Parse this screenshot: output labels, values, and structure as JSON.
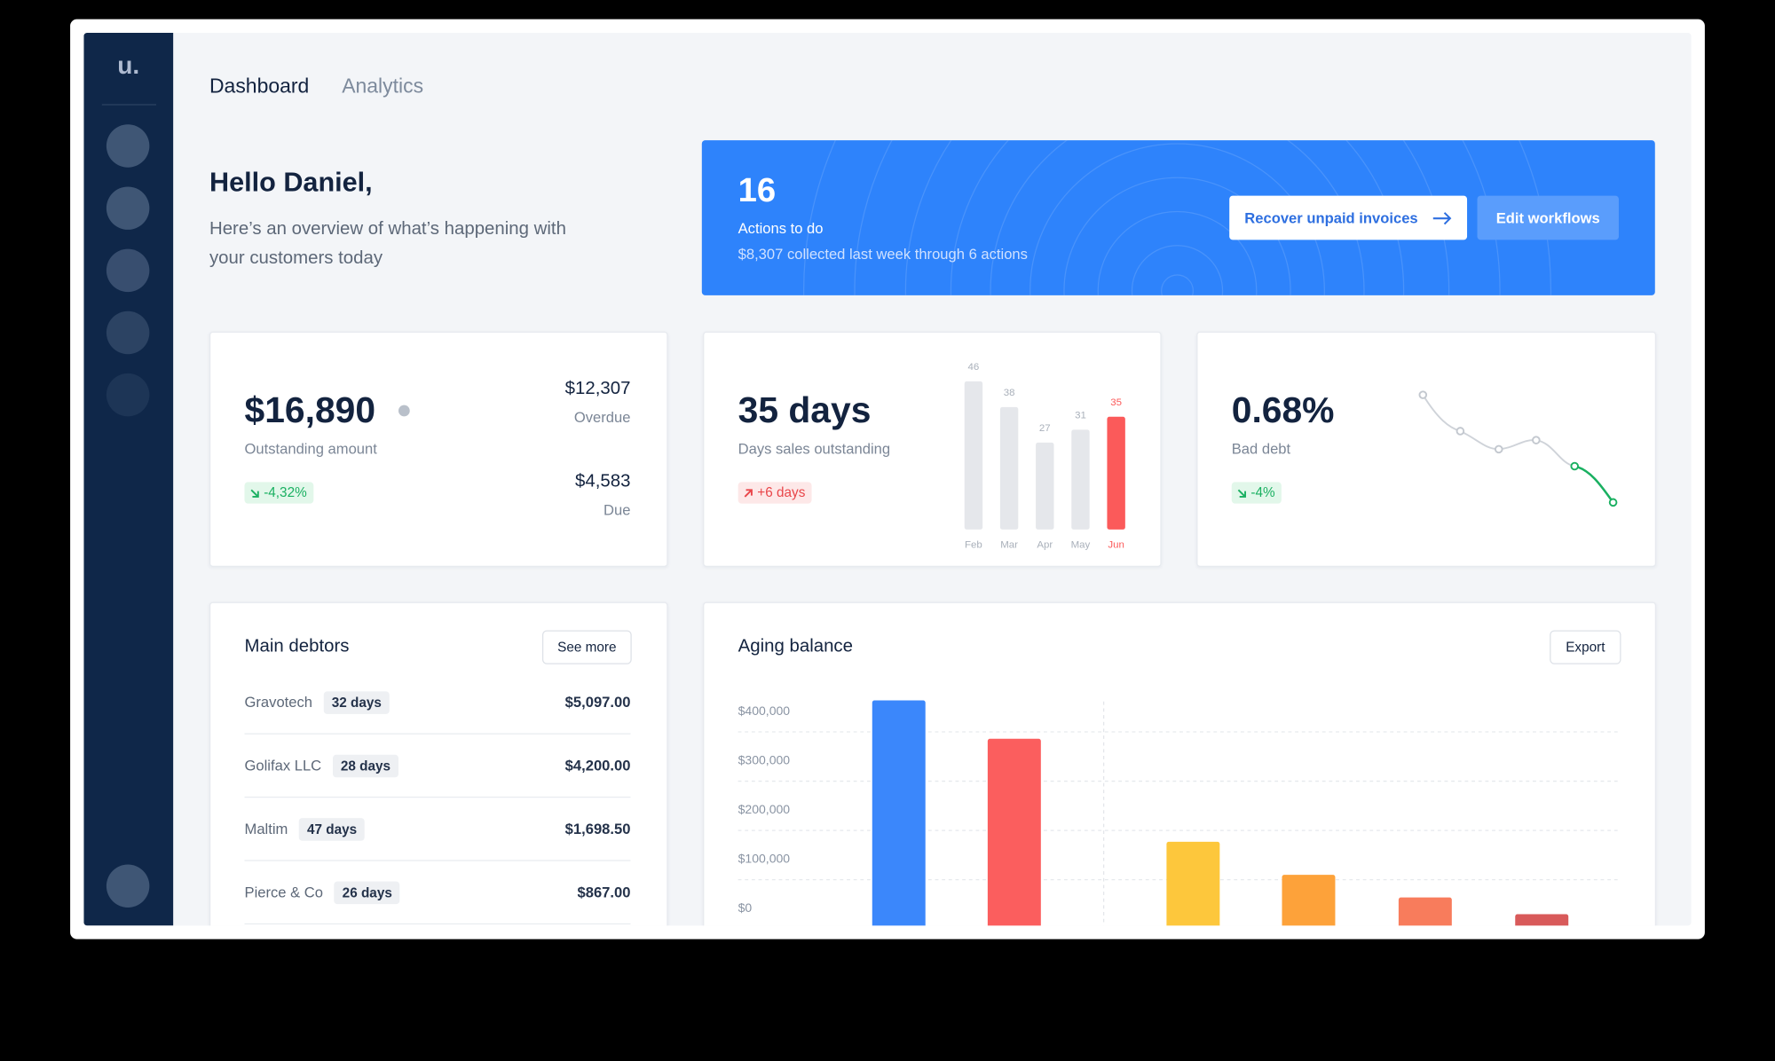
{
  "sidebar": {
    "logo": "u."
  },
  "tabs": [
    "Dashboard",
    "Analytics"
  ],
  "greeting": {
    "title": "Hello Daniel,",
    "text": "Here’s an overview of what’s happening with your customers today"
  },
  "actions": {
    "count": "16",
    "label": "Actions to do",
    "note": "$8,307 collected last week through 6 actions",
    "buttons": [
      "Recover unpaid invoices",
      "Edit workflows"
    ]
  },
  "outstanding": {
    "amount": "$16,890",
    "label": "Outstanding amount",
    "change": "-4,32%",
    "overdue_amount": "$12,307",
    "overdue_label": "Overdue",
    "due_amount": "$4,583",
    "due_label": "Due"
  },
  "dso": {
    "value": "35 days",
    "label": "Days sales outstanding",
    "change": "+6 days"
  },
  "bad_debt": {
    "value": "0.68%",
    "label": "Bad debt",
    "change": "-4%"
  },
  "debtors": {
    "title": "Main debtors",
    "button": "See more",
    "rows": [
      [
        "Gravotech",
        "32 days",
        "$5,097.00"
      ],
      [
        "Golifax LLC",
        "28 days",
        "$4,200.00"
      ],
      [
        "Maltim",
        "47 days",
        "$1,698.50"
      ],
      [
        "Pierce & Co",
        "26 days",
        "$867.00"
      ]
    ]
  },
  "aging_button": "Export",
  "chart_data": [
    {
      "type": "bar",
      "categories": [
        "Feb",
        "Mar",
        "Apr",
        "May",
        "Jun"
      ],
      "values": [
        46,
        38,
        27,
        31,
        35
      ],
      "colors": [
        "#e5e7eb",
        "#e5e7eb",
        "#e5e7eb",
        "#e5e7eb",
        "#fb5a5a"
      ]
    },
    {
      "type": "bar",
      "title": "Aging balance",
      "categories": [
        null,
        null,
        null,
        null,
        null,
        null
      ],
      "values": [
        464000,
        386000,
        177000,
        110000,
        64000,
        30000
      ],
      "colors": [
        "#3b87fb",
        "#fb5e5e",
        "#fdc73c",
        "#fda23a",
        "#f87c5c",
        "#d85a5a"
      ],
      "ylim": [
        0,
        480000
      ],
      "yticks": [
        {
          "value": 0,
          "label": "$0"
        },
        {
          "value": 100000,
          "label": "$100,000"
        },
        {
          "value": 200000,
          "label": "$200,000"
        },
        {
          "value": 300000,
          "label": "$300,000"
        },
        {
          "value": 400000,
          "label": "$400,000"
        }
      ],
      "grid": true
    }
  ]
}
